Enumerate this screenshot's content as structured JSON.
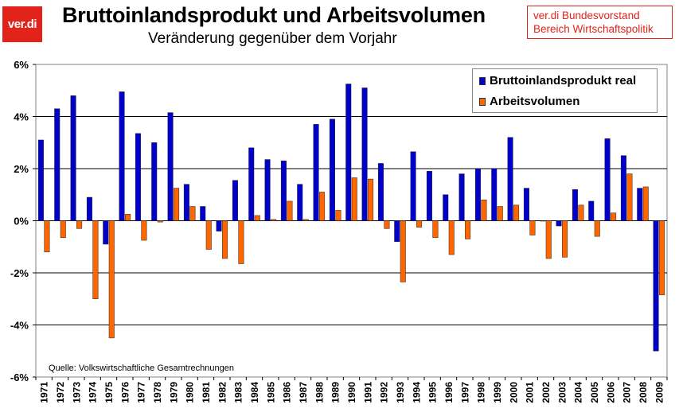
{
  "logo": {
    "text": "ver.di"
  },
  "header": {
    "title": "Bruttoinlandsprodukt und Arbeitsvolumen",
    "subtitle": "Veränderung gegenüber dem Vorjahr"
  },
  "infobox": {
    "line1": "ver.di Bundesvorstand",
    "line2": "Bereich Wirtschaftspolitik"
  },
  "source": "Quelle: Volkswirtschaftliche Gesamtrechnungen",
  "colors": {
    "bip": "#0000cc",
    "av": "#ff6600",
    "accent": "#e2231a"
  },
  "chart_data": {
    "type": "bar",
    "categories": [
      "1971",
      "1972",
      "1973",
      "1974",
      "1975",
      "1976",
      "1977",
      "1978",
      "1979",
      "1980",
      "1981",
      "1982",
      "1983",
      "1984",
      "1985",
      "1986",
      "1987",
      "1988",
      "1989",
      "1990",
      "1991",
      "1992",
      "1993",
      "1994",
      "1995",
      "1996",
      "1997",
      "1998",
      "1999",
      "2000",
      "2001",
      "2002",
      "2003",
      "2004",
      "2005",
      "2006",
      "2007",
      "2008",
      "2009"
    ],
    "series": [
      {
        "name": "Bruttoinlandsprodukt real",
        "color": "#0000cc",
        "values": [
          3.1,
          4.3,
          4.8,
          0.9,
          -0.9,
          4.95,
          3.35,
          3.0,
          4.15,
          1.4,
          0.55,
          -0.4,
          1.55,
          2.8,
          2.35,
          2.3,
          1.4,
          3.7,
          3.9,
          5.25,
          5.1,
          2.2,
          -0.8,
          2.65,
          1.9,
          1.0,
          1.8,
          2.0,
          2.0,
          3.2,
          1.25,
          0.0,
          -0.2,
          1.2,
          0.75,
          3.15,
          2.5,
          1.25,
          -5.0
        ]
      },
      {
        "name": "Arbeitsvolumen",
        "color": "#ff6600",
        "values": [
          -1.2,
          -0.65,
          -0.3,
          -3.0,
          -4.5,
          0.25,
          -0.75,
          -0.05,
          1.25,
          0.55,
          -1.1,
          -1.45,
          -1.65,
          0.2,
          0.05,
          0.75,
          0.05,
          1.1,
          0.4,
          1.65,
          1.6,
          -0.3,
          -2.35,
          -0.25,
          -0.65,
          -1.3,
          -0.7,
          0.8,
          0.55,
          0.6,
          -0.55,
          -1.45,
          -1.4,
          0.6,
          -0.6,
          0.3,
          1.8,
          1.3,
          -2.85
        ]
      }
    ],
    "ylim": [
      -6,
      6
    ],
    "yticks": [
      6,
      4,
      2,
      0,
      -2,
      -4,
      -6
    ],
    "ytick_labels": [
      "6%",
      "4%",
      "2%",
      "0%",
      "-2%",
      "-4%",
      "-6%"
    ],
    "grid": true,
    "legend": "top-right"
  }
}
